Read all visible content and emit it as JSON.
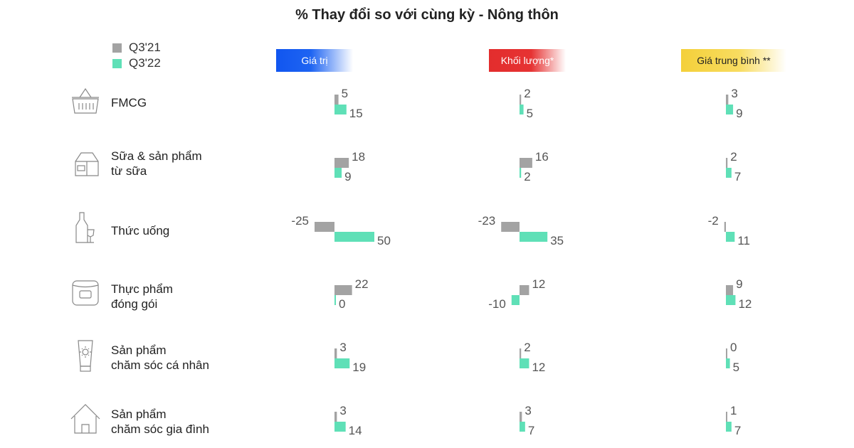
{
  "title": "% Thay đổi so với cùng kỳ - Nông thôn",
  "legend": [
    {
      "label": "Q3'21",
      "color": "#a3a3a3"
    },
    {
      "label": "Q3'22",
      "color": "#5fe0b7"
    }
  ],
  "columns": [
    {
      "label": "Giá trị"
    },
    {
      "label": "Khối lượng*"
    },
    {
      "label": "Giá trung bình **"
    }
  ],
  "categories": [
    {
      "lines": [
        "FMCG",
        ""
      ],
      "icon": "basket-icon"
    },
    {
      "lines": [
        "Sữa & sản phẩm",
        "từ sữa"
      ],
      "icon": "milk-carton-icon"
    },
    {
      "lines": [
        "Thức uống",
        ""
      ],
      "icon": "bottle-glass-icon"
    },
    {
      "lines": [
        "Thực phẩm",
        "đóng gói"
      ],
      "icon": "can-icon"
    },
    {
      "lines": [
        "Sản phẩm",
        "chăm sóc cá nhân"
      ],
      "icon": "lotion-tube-icon"
    },
    {
      "lines": [
        "Sản phẩm",
        "chăm sóc gia đình"
      ],
      "icon": "house-icon"
    }
  ],
  "chart_data": {
    "type": "bar",
    "title": "% Thay đổi so với cùng kỳ - Nông thôn",
    "categories": [
      "FMCG",
      "Sữa & sản phẩm từ sữa",
      "Thức uống",
      "Thực phẩm đóng gói",
      "Sản phẩm chăm sóc cá nhân",
      "Sản phẩm chăm sóc gia đình"
    ],
    "panels": [
      {
        "name": "Giá trị",
        "series": [
          {
            "name": "Q3'21",
            "values": [
              5,
              18,
              -25,
              22,
              3,
              3
            ]
          },
          {
            "name": "Q3'22",
            "values": [
              15,
              9,
              50,
              0,
              19,
              14
            ]
          }
        ]
      },
      {
        "name": "Khối lượng*",
        "series": [
          {
            "name": "Q3'21",
            "values": [
              2,
              16,
              -23,
              12,
              2,
              3
            ]
          },
          {
            "name": "Q3'22",
            "values": [
              5,
              2,
              35,
              -10,
              12,
              7
            ]
          }
        ]
      },
      {
        "name": "Giá trung bình **",
        "series": [
          {
            "name": "Q3'21",
            "values": [
              3,
              2,
              -2,
              9,
              0,
              1
            ]
          },
          {
            "name": "Q3'22",
            "values": [
              9,
              7,
              11,
              12,
              5,
              7
            ]
          }
        ]
      }
    ],
    "colors": {
      "Q3'21": "#a3a3a3",
      "Q3'22": "#5fe0b7"
    }
  }
}
